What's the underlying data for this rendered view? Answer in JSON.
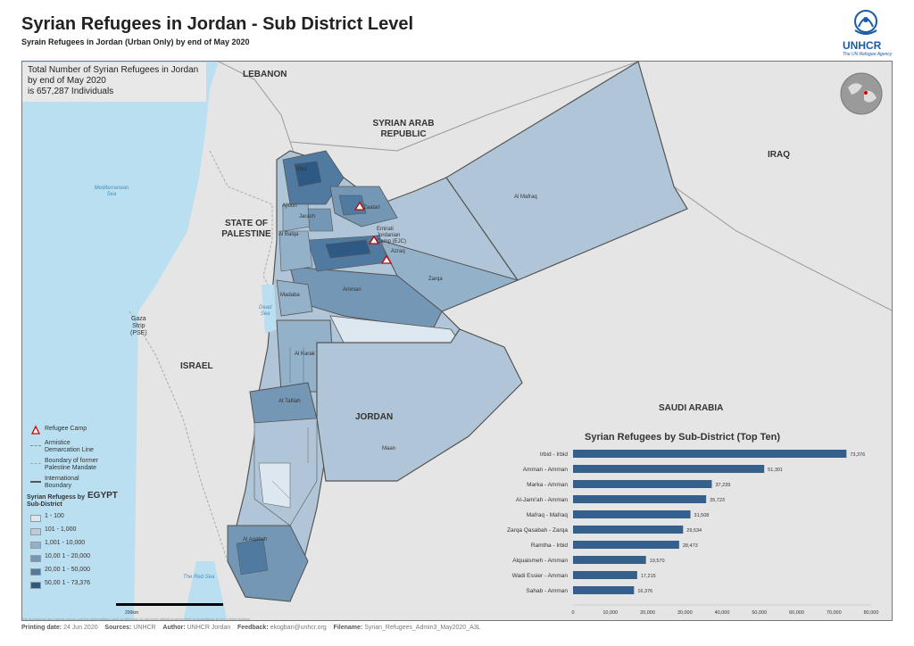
{
  "header": {
    "title": "Syrian Refugees in Jordan - Sub District Level",
    "subtitle": "Syrain Refugees in Jordan (Urban Only) by end of May 2020",
    "logo_text": "UNHCR",
    "logo_sub": "The UN Refugee Agency"
  },
  "infobox": {
    "line1": "Total Number of Syrian Refugees in Jordan",
    "line2": "by end of May 2020",
    "line3": "is 657,287 Individuals"
  },
  "countries": {
    "lebanon": "LEBANON",
    "syria1": "SYRIAN ARAB",
    "syria2": "REPUBLIC",
    "iraq": "IRAQ",
    "palestine1": "STATE OF",
    "palestine2": "PALESTINE",
    "israel": "ISRAEL",
    "jordan": "JORDAN",
    "saudi": "SAUDI ARABIA",
    "egypt": "EGYPT",
    "gaza1": "Gaza",
    "gaza2": "Strip",
    "gaza3": "(PSE)"
  },
  "seas": {
    "med1": "Mediterranean",
    "med2": "Sea",
    "dead1": "Dead",
    "dead2": "Sea",
    "red": "The Red Sea"
  },
  "places": {
    "irbid": "Irbid",
    "ajloun": "Ajloun",
    "jarash": "Jarash",
    "albalqa": "Al Balqa",
    "zaatari": "Zaatari",
    "emirati1": "Emirati",
    "emirati2": "Jordanian",
    "emirati3": "Camp (EJC)",
    "azraq": "Azraq",
    "almafraq": "Al Mafraq",
    "amman": "Amman",
    "zarqa": "Zarqa",
    "madaba": "Madaba",
    "alkarak": "Al Karak",
    "atafilah": "At Tafilah",
    "maan": "Maan",
    "alaqabah": "Al Aqabah"
  },
  "legend": {
    "camp": "Refugee Camp",
    "armistice1": "Armistice",
    "armistice2": "Demarcation Line",
    "boundary1": "Boundary of former",
    "boundary2": "Palestine Mandate",
    "intl1": "International",
    "intl2": "Boundary",
    "title1": "Syrian Refugess by",
    "title2": "Sub-District",
    "classes": [
      {
        "label": "1 - 100",
        "color": "#dde7ef"
      },
      {
        "label": "101 - 1,000",
        "color": "#b7ccdc"
      },
      {
        "label": "1,001 - 10,000",
        "color": "#93b1c9"
      },
      {
        "label": "10,00 1 - 20,000",
        "color": "#7497b6"
      },
      {
        "label": "20,00 1 - 50,000",
        "color": "#507aa0"
      },
      {
        "label": "50,00 1 - 73,376",
        "color": "#2f5985"
      }
    ]
  },
  "scale_label": "200km",
  "chart_data": {
    "type": "bar",
    "orientation": "horizontal",
    "title": "Syrian Refugees by Sub-District (Top Ten)",
    "categories": [
      "Irbid - Irbid",
      "Amman - Amman",
      "Marka - Amman",
      "Al-Jami'ah - Amman",
      "Mafraq - Mafraq",
      "Zarqa Qasabah - Zarqa",
      "Ramtha - Irbid",
      "Alquaismeh - Amman",
      "Wadi Essier - Amman",
      "Sahab - Amman"
    ],
    "values": [
      73376,
      51301,
      37239,
      35723,
      31508,
      29534,
      28473,
      19570,
      17215,
      16376
    ],
    "value_labels": [
      "73,376",
      "51,301",
      "37,239",
      "35,723",
      "31,508",
      "29,534",
      "28,473",
      "19,570",
      "17,215",
      "16,376"
    ],
    "xlim": [
      0,
      80000
    ],
    "xticks": [
      "0",
      "10,000",
      "20,000",
      "30,000",
      "40,000",
      "50,000",
      "60,000",
      "70,000",
      "80,000"
    ],
    "bar_color": "#36608c",
    "xlabel": "",
    "ylabel": ""
  },
  "footer": {
    "disclaimer": "The boundaries and names shown and the designations used on this map do not imply official endorsement or acceptance by the United Nations",
    "printing_label": "Printing date:",
    "printing_value": "24 Jun 2020",
    "sources_label": "Sources:",
    "sources_value": "UNHCR",
    "author_label": "Author:",
    "author_value": "UNHCR Jordan",
    "feedback_label": "Feedback:",
    "feedback_value": "ekogban@unhcr.org",
    "filename_label": "Filename:",
    "filename_value": "Syrian_Refugees_Admin3_May2020_A3L"
  }
}
